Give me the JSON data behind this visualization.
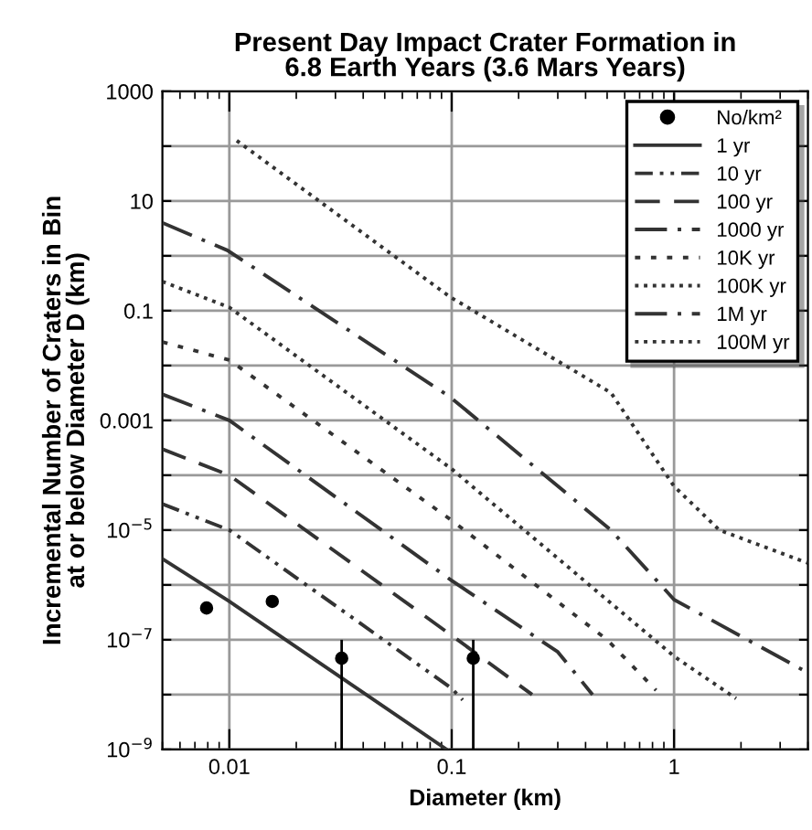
{
  "chart_data": {
    "type": "line",
    "title": "Present Day Impact Crater Formation in\n6.8 Earth Years (3.6 Mars Years)",
    "xlabel": "Diameter (km)",
    "ylabel": "Incremental Number of Craters in Bin\nat or below Diameter D (km)",
    "log": "xy",
    "xlim": [
      0.005,
      4
    ],
    "ylim": [
      1e-09,
      1000
    ],
    "xticks": [
      0.01,
      0.1,
      1
    ],
    "yticks": [
      {
        "value": 1e-09,
        "label": "10$^{−9}$"
      },
      {
        "value": 1e-08,
        "label": null
      },
      {
        "value": 1e-07,
        "label": "10$^{−7}$"
      },
      {
        "value": 1e-06,
        "label": null
      },
      {
        "value": 1e-05,
        "label": "10$^{−5}$"
      },
      {
        "value": 0.0001,
        "label": null
      },
      0.001,
      {
        "value": 0.01,
        "label": null
      },
      0.1,
      {
        "value": 1,
        "label": null
      },
      10,
      {
        "value": 100,
        "label": null
      },
      1000
    ],
    "grid": true,
    "legend": "top right",
    "series": [
      {
        "name": "No/km²",
        "type": "scatter",
        "marker": "circle",
        "color": "#000000",
        "x": [
          0.0079,
          0.0156,
          0.032,
          0.125
        ],
        "values": [
          3.8e-07,
          5e-07,
          4.6e-08,
          4.6e-08
        ],
        "errors": [
          [
            3e-07,
            4.5e-07
          ],
          [
            4e-07,
            6e-07
          ],
          [
            1e-09,
            1e-07
          ],
          [
            1e-09,
            1e-07
          ]
        ]
      },
      {
        "name": "1 yr",
        "line_style": "solid",
        "color": "#333333",
        "x": [
          0.005,
          0.01,
          0.095
        ],
        "values": [
          3e-06,
          5e-07,
          1e-09
        ]
      },
      {
        "name": "10 yr",
        "line_style": "dashdotdot",
        "color": "#333333",
        "x": [
          0.005,
          0.01,
          0.1,
          0.112
        ],
        "values": [
          3e-05,
          1e-05,
          1.3e-08,
          8e-09
        ]
      },
      {
        "name": "100 yr",
        "line_style": "dashed",
        "color": "#333333",
        "x": [
          0.005,
          0.01,
          0.1,
          0.23
        ],
        "values": [
          0.0003,
          0.0001,
          1.2e-07,
          1e-08
        ]
      },
      {
        "name": "1000 yr",
        "line_style": "longdashdot",
        "color": "#333333",
        "x": [
          0.005,
          0.01,
          0.1,
          0.3,
          0.43
        ],
        "values": [
          0.003,
          0.001,
          1.2e-06,
          6e-08,
          1e-08
        ]
      },
      {
        "name": "10K yr",
        "line_style": "dotted",
        "color": "#333333",
        "x": [
          0.005,
          0.01,
          0.1,
          0.5,
          0.83
        ],
        "values": [
          0.027,
          0.0126,
          1.5e-05,
          1e-07,
          1.2e-08
        ]
      },
      {
        "name": "100K yr",
        "line_style": "densedotted",
        "color": "#333333",
        "x": [
          0.005,
          0.01,
          0.1,
          1,
          1.9
        ],
        "values": [
          0.34,
          0.115,
          0.00013,
          5e-08,
          8.5e-09
        ]
      },
      {
        "name": "1M yr",
        "line_style": "longdashdot",
        "color": "#333333",
        "x": [
          0.005,
          0.0098,
          0.098,
          0.52,
          1,
          4
        ],
        "values": [
          4,
          1.26,
          0.0027,
          1e-05,
          5.4e-07,
          2.5e-08
        ]
      },
      {
        "name": "100M yr",
        "line_style": "densedotted",
        "color": "#333333",
        "x": [
          0.0108,
          0.098,
          0.52,
          1,
          1.6,
          4
        ],
        "values": [
          126,
          0.18,
          0.0032,
          6.3e-05,
          1e-05,
          2.5e-06
        ]
      }
    ]
  }
}
